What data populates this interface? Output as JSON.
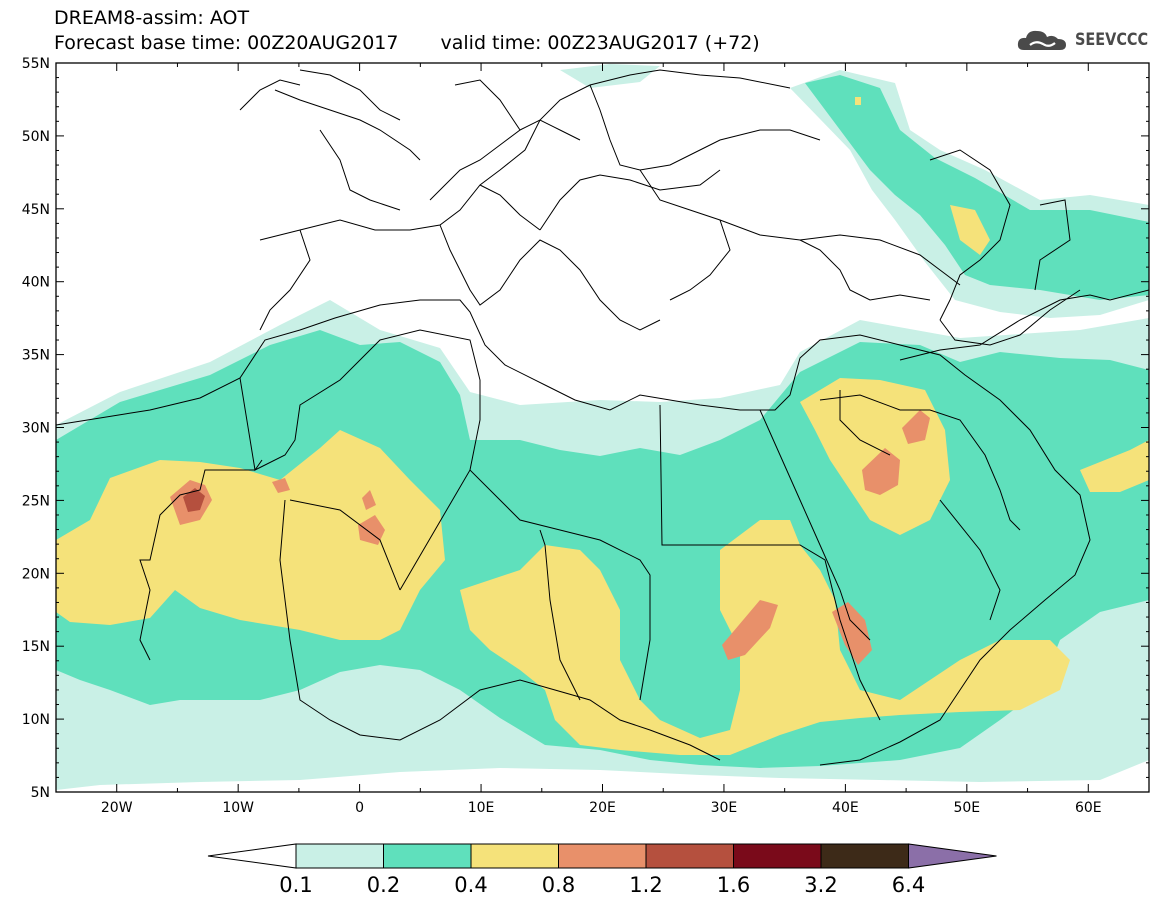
{
  "header": {
    "title_line1": "DREAM8-assim: AOT",
    "base_time": "Forecast base time: 00Z20AUG2017",
    "valid_time": "valid time: 00Z23AUG2017 (+72)",
    "logo_text": "SEEVCCC",
    "logo_icon": "cloud-icon"
  },
  "map": {
    "variable": "AOT",
    "region": "North Africa / Middle East / Europe",
    "lon_range": [
      -25,
      65
    ],
    "lat_range": [
      5,
      55
    ],
    "lon_ticks": [
      {
        "value": -20,
        "label": "20W"
      },
      {
        "value": -10,
        "label": "10W"
      },
      {
        "value": 0,
        "label": "0"
      },
      {
        "value": 10,
        "label": "10E"
      },
      {
        "value": 20,
        "label": "20E"
      },
      {
        "value": 30,
        "label": "30E"
      },
      {
        "value": 40,
        "label": "40E"
      },
      {
        "value": 50,
        "label": "50E"
      },
      {
        "value": 60,
        "label": "60E"
      }
    ],
    "lat_ticks": [
      {
        "value": 55,
        "label": "55N"
      },
      {
        "value": 50,
        "label": "50N"
      },
      {
        "value": 45,
        "label": "45N"
      },
      {
        "value": 40,
        "label": "40N"
      },
      {
        "value": 35,
        "label": "35N"
      },
      {
        "value": 30,
        "label": "30N"
      },
      {
        "value": 25,
        "label": "25N"
      },
      {
        "value": 20,
        "label": "20N"
      },
      {
        "value": 15,
        "label": "15N"
      },
      {
        "value": 10,
        "label": "10N"
      },
      {
        "value": 5,
        "label": "5N"
      }
    ]
  },
  "colorbar": {
    "colors": [
      "#ffffff",
      "#c9f0e6",
      "#5fe0bc",
      "#f5e27a",
      "#e8906a",
      "#b5503e",
      "#7a0a1a",
      "#3d2a18",
      "#8b6fa8"
    ],
    "labels": [
      "0.1",
      "0.2",
      "0.4",
      "0.8",
      "1.2",
      "1.6",
      "3.2",
      "6.4"
    ]
  }
}
